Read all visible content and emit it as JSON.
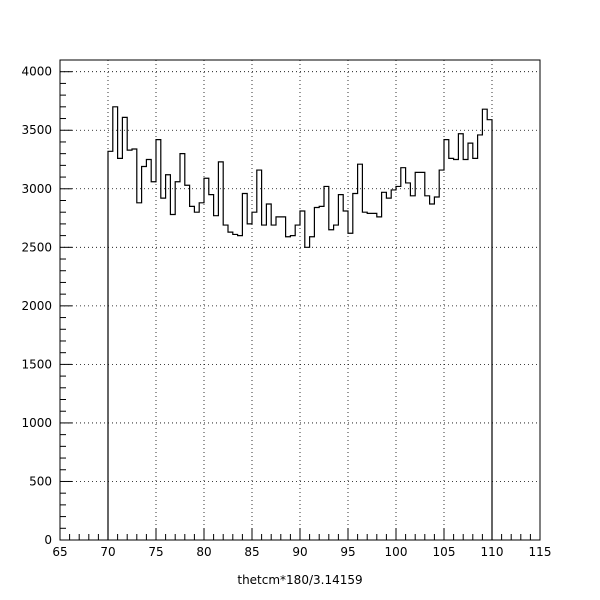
{
  "chart_data": {
    "type": "histogram",
    "title": "",
    "xlabel": "thetcm*180/3.14159",
    "ylabel": "",
    "xlim": [
      65,
      115
    ],
    "ylim": [
      0,
      4100
    ],
    "grid": true,
    "legend": "none",
    "x_ticks": [
      65,
      70,
      75,
      80,
      85,
      90,
      95,
      100,
      105,
      110,
      115
    ],
    "y_ticks": [
      0,
      500,
      1000,
      1500,
      2000,
      2500,
      3000,
      3500,
      4000
    ],
    "x_tick_labels": [
      "65",
      "70",
      "75",
      "80",
      "85",
      "90",
      "95",
      "100",
      "105",
      "110",
      "115"
    ],
    "y_tick_labels": [
      "0",
      "500",
      "1000",
      "1500",
      "2000",
      "2500",
      "3000",
      "3500",
      "4000"
    ],
    "bin_width": 0.5,
    "bin_start": 70,
    "values": [
      3320,
      3700,
      3260,
      3610,
      3330,
      3340,
      2880,
      3190,
      3250,
      3060,
      3420,
      2920,
      3120,
      2780,
      3060,
      3300,
      3030,
      2850,
      2800,
      2880,
      3090,
      2950,
      2770,
      3230,
      2690,
      2630,
      2610,
      2600,
      2960,
      2700,
      2800,
      3160,
      2690,
      2870,
      2690,
      2760,
      2760,
      2590,
      2600,
      2690,
      2810,
      2500,
      2590,
      2840,
      2850,
      3020,
      2650,
      2690,
      2950,
      2810,
      2620,
      2960,
      3210,
      2800,
      2790,
      2790,
      2760,
      2970,
      2920,
      2990,
      3020,
      3180,
      3050,
      2940,
      3140,
      3140,
      2940,
      2870,
      2930,
      3160,
      3420,
      3260,
      3250,
      3470,
      3250,
      3390,
      3260,
      3460,
      3680,
      3590
    ]
  }
}
